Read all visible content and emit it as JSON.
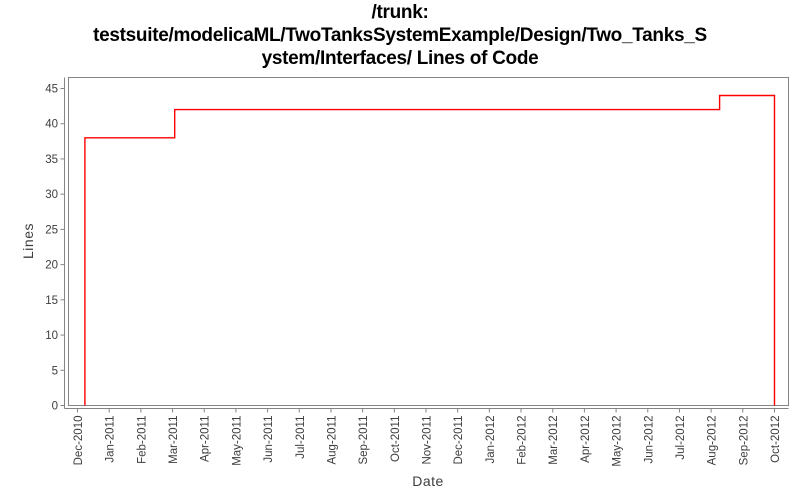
{
  "chart_data": {
    "type": "line",
    "line_style": "step",
    "title": "/trunk: testsuite/modelicaML/TwoTanksSystemExample/Design/Two_Tanks_System/Interfaces/ Lines of Code",
    "title_lines": [
      "/trunk:",
      "testsuite/modelicaML/TwoTanksSystemExample/Design/Two_Tanks_S",
      "ystem/Interfaces/ Lines of Code"
    ],
    "xlabel": "Date",
    "ylabel": "Lines",
    "ylim": [
      0,
      45
    ],
    "y_ticks": [
      0,
      5,
      10,
      15,
      20,
      25,
      30,
      35,
      40,
      45
    ],
    "x_tick_labels": [
      "Dec-2010",
      "Jan-2011",
      "Feb-2011",
      "Mar-2011",
      "Apr-2011",
      "May-2011",
      "Jun-2011",
      "Jul-2011",
      "Aug-2011",
      "Sep-2011",
      "Oct-2011",
      "Nov-2011",
      "Dec-2011",
      "Jan-2012",
      "Feb-2012",
      "Mar-2012",
      "Apr-2012",
      "May-2012",
      "Jun-2012",
      "Jul-2012",
      "Aug-2012",
      "Sep-2012",
      "Oct-2012"
    ],
    "grid": false,
    "legend": false,
    "line_color": "#ff0000",
    "axis_color": "#848484",
    "tick_label_color": "#3d3d3d",
    "series": [
      {
        "name": "Lines of Code",
        "points": [
          {
            "date": "2010-12-08",
            "value": 0
          },
          {
            "date": "2010-12-08",
            "value": 38
          },
          {
            "date": "2011-03-03",
            "value": 38
          },
          {
            "date": "2011-03-03",
            "value": 42
          },
          {
            "date": "2012-08-09",
            "value": 42
          },
          {
            "date": "2012-08-09",
            "value": 44
          },
          {
            "date": "2012-10-01",
            "value": 44
          },
          {
            "date": "2012-10-01",
            "value": 0
          }
        ]
      }
    ]
  }
}
